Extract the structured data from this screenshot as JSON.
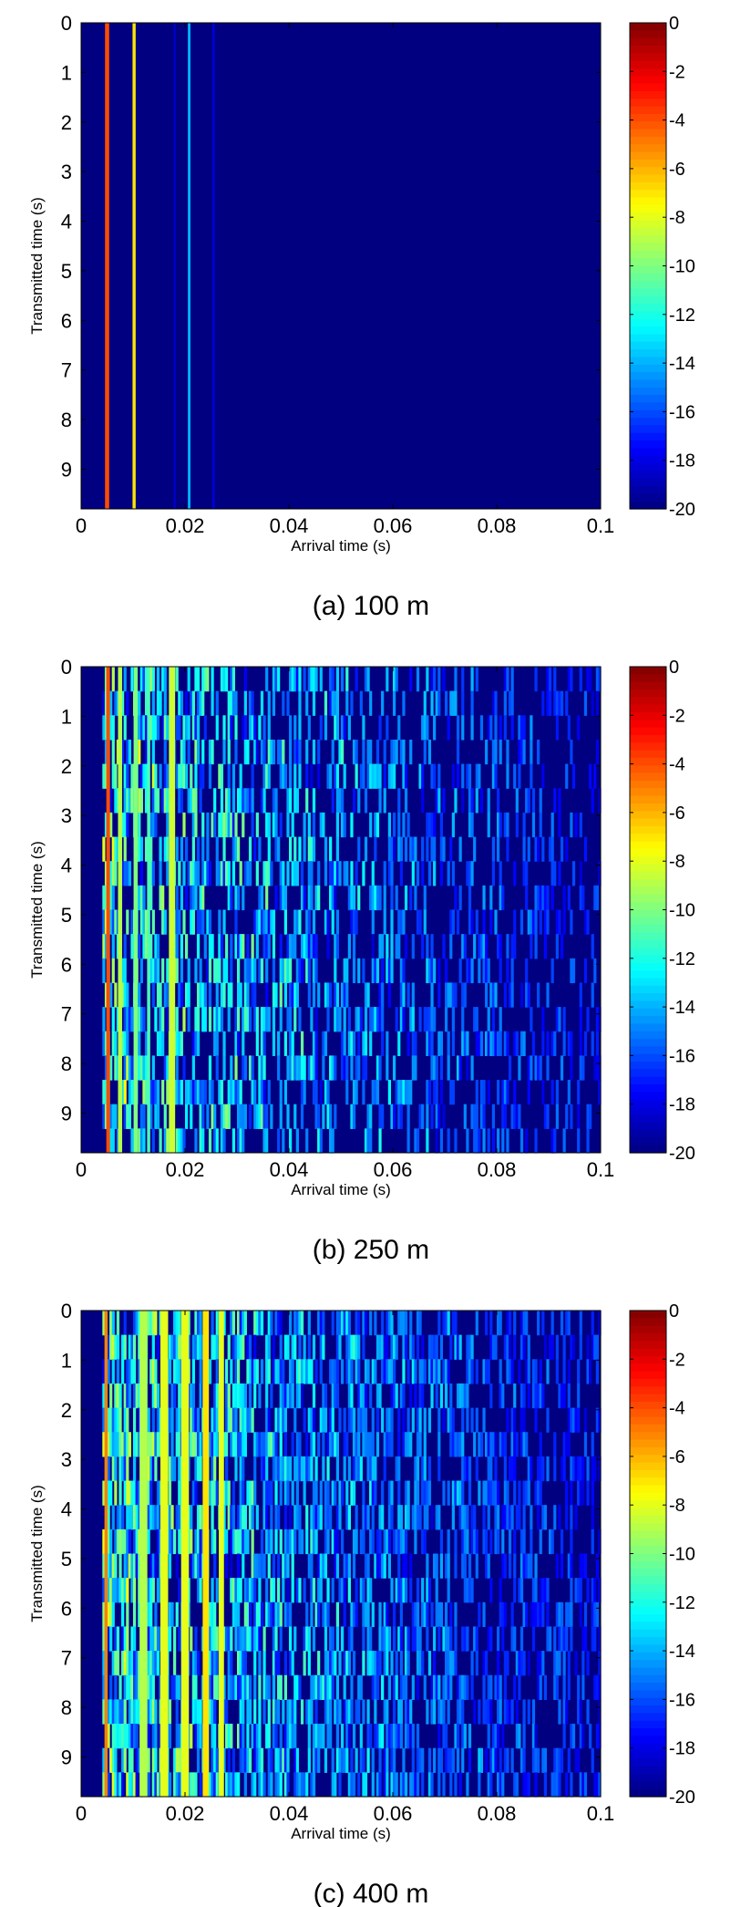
{
  "chart_data": [
    {
      "type": "heatmap",
      "caption": "(a) 100 m",
      "xlabel": "Arrival time (s)",
      "ylabel": "Transmitted time (s)",
      "xlim": [
        0,
        0.1
      ],
      "ylim": [
        0,
        9.8
      ],
      "y_reversed": true,
      "xticks": [
        0,
        0.02,
        0.04,
        0.06,
        0.08,
        0.1
      ],
      "xtick_labels": [
        "0",
        "0.02",
        "0.04",
        "0.06",
        "0.08",
        "0.1"
      ],
      "yticks": [
        0,
        1,
        2,
        3,
        4,
        5,
        6,
        7,
        8,
        9
      ],
      "ytick_labels": [
        "0",
        "1",
        "2",
        "3",
        "4",
        "5",
        "6",
        "7",
        "8",
        "9"
      ],
      "colorbar": {
        "range": [
          -20,
          0
        ],
        "ticks": [
          0,
          -2,
          -4,
          -6,
          -8,
          -10,
          -12,
          -14,
          -16,
          -18,
          -20
        ],
        "tick_labels": [
          "0",
          "-2",
          "-4",
          "-6",
          "-8",
          "-10",
          "-12",
          "-14",
          "-16",
          "-18",
          "-20"
        ],
        "colormap": "jet"
      },
      "background_level": -20,
      "paths": [
        {
          "arrival_s": 0.005,
          "width_s": 0.0008,
          "level": -4
        },
        {
          "arrival_s": 0.0102,
          "width_s": 0.0006,
          "level": -7
        },
        {
          "arrival_s": 0.0208,
          "width_s": 0.0005,
          "level": -14
        },
        {
          "arrival_s": 0.0255,
          "width_s": 0.0004,
          "level": -18
        },
        {
          "arrival_s": 0.018,
          "width_s": 0.0004,
          "level": -18.5
        }
      ],
      "scatter_density": 0,
      "decay_end_s": 0.03
    },
    {
      "type": "heatmap",
      "caption": "(b) 250 m",
      "xlabel": "Arrival time (s)",
      "ylabel": "Transmitted time (s)",
      "xlim": [
        0,
        0.1
      ],
      "ylim": [
        0,
        9.8
      ],
      "y_reversed": true,
      "xticks": [
        0,
        0.02,
        0.04,
        0.06,
        0.08,
        0.1
      ],
      "xtick_labels": [
        "0",
        "0.02",
        "0.04",
        "0.06",
        "0.08",
        "0.1"
      ],
      "yticks": [
        0,
        1,
        2,
        3,
        4,
        5,
        6,
        7,
        8,
        9
      ],
      "ytick_labels": [
        "0",
        "1",
        "2",
        "3",
        "4",
        "5",
        "6",
        "7",
        "8",
        "9"
      ],
      "colorbar": {
        "range": [
          -20,
          0
        ],
        "ticks": [
          0,
          -2,
          -4,
          -6,
          -8,
          -10,
          -12,
          -14,
          -16,
          -18,
          -20
        ],
        "tick_labels": [
          "0",
          "-2",
          "-4",
          "-6",
          "-8",
          "-10",
          "-12",
          "-14",
          "-16",
          "-18",
          "-20"
        ],
        "colormap": "jet"
      },
      "background_level": -20,
      "paths": [
        {
          "arrival_s": 0.0052,
          "width_s": 0.0007,
          "level": -4
        },
        {
          "arrival_s": 0.0075,
          "width_s": 0.0008,
          "level": -9
        },
        {
          "arrival_s": 0.0105,
          "width_s": 0.0008,
          "level": -10
        },
        {
          "arrival_s": 0.013,
          "width_s": 0.0006,
          "level": -11
        },
        {
          "arrival_s": 0.0175,
          "width_s": 0.0012,
          "level": -8.5
        }
      ],
      "scatter_density": 0.55,
      "decay_end_s": 0.1
    },
    {
      "type": "heatmap",
      "caption": "(c) 400 m",
      "xlabel": "Arrival time (s)",
      "ylabel": "Transmitted time (s)",
      "xlim": [
        0,
        0.1
      ],
      "ylim": [
        0,
        9.8
      ],
      "y_reversed": true,
      "xticks": [
        0,
        0.02,
        0.04,
        0.06,
        0.08,
        0.1
      ],
      "xtick_labels": [
        "0",
        "0.02",
        "0.04",
        "0.06",
        "0.08",
        "0.1"
      ],
      "yticks": [
        0,
        1,
        2,
        3,
        4,
        5,
        6,
        7,
        8,
        9
      ],
      "ytick_labels": [
        "0",
        "1",
        "2",
        "3",
        "4",
        "5",
        "6",
        "7",
        "8",
        "9"
      ],
      "colorbar": {
        "range": [
          -20,
          0
        ],
        "ticks": [
          0,
          -2,
          -4,
          -6,
          -8,
          -10,
          -12,
          -14,
          -16,
          -18,
          -20
        ],
        "tick_labels": [
          "0",
          "-2",
          "-4",
          "-6",
          "-8",
          "-10",
          "-12",
          "-14",
          "-16",
          "-18",
          "-20"
        ],
        "colormap": "jet"
      },
      "background_level": -20,
      "paths": [
        {
          "arrival_s": 0.0048,
          "width_s": 0.0006,
          "level": -5
        },
        {
          "arrival_s": 0.012,
          "width_s": 0.0015,
          "level": -9
        },
        {
          "arrival_s": 0.016,
          "width_s": 0.0015,
          "level": -8
        },
        {
          "arrival_s": 0.02,
          "width_s": 0.0015,
          "level": -8
        },
        {
          "arrival_s": 0.024,
          "width_s": 0.0012,
          "level": -7
        },
        {
          "arrival_s": 0.027,
          "width_s": 0.001,
          "level": -8
        }
      ],
      "scatter_density": 0.75,
      "decay_end_s": 0.1
    }
  ]
}
